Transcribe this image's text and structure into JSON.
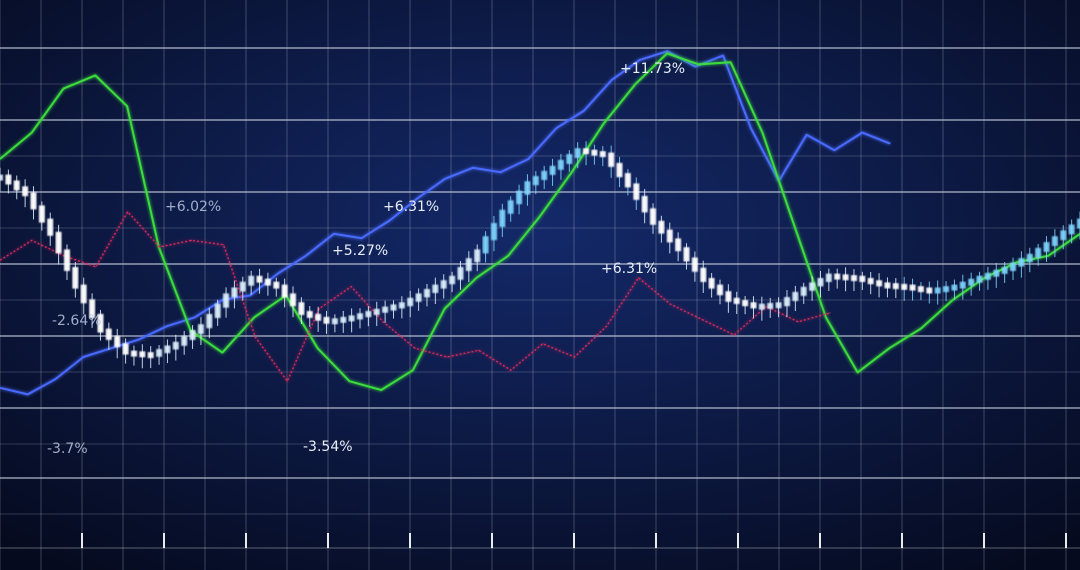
{
  "colors": {
    "background_center": "#14296a",
    "background_edge": "#050a1e",
    "grid": "#c8cfe0",
    "blue_line": "#4a6bff",
    "green_line": "#3bdc3b",
    "red_line": "#d6285a",
    "candle_body": "#dff3ff",
    "candle_body_cyan": "#7fd6ff",
    "label_text": "#e8eef8"
  },
  "annotations": [
    {
      "text": "+11.73%"
    },
    {
      "text": "+6.02%"
    },
    {
      "text": "+6.31%"
    },
    {
      "text": "+5.27%"
    },
    {
      "text": "+6.31%"
    },
    {
      "text": "-2.64%"
    },
    {
      "text": "-3.54%"
    },
    {
      "text": "-3.7%"
    }
  ],
  "chart_data": {
    "type": "line",
    "title": "",
    "xlabel": "",
    "ylabel": "",
    "grid": true,
    "legend": "none",
    "tick_marks": 13,
    "series": [
      {
        "color": "blue",
        "values": [
          -3.4,
          -3.7,
          -3.0,
          -2.0,
          -1.6,
          -1.2,
          -0.6,
          -0.2,
          0.6,
          0.8,
          1.8,
          2.6,
          3.6,
          3.4,
          4.2,
          5.2,
          6.1,
          6.6,
          6.4,
          7.0,
          8.4,
          9.2,
          10.6,
          11.5,
          11.9,
          11.2,
          11.7,
          8.4,
          6.0,
          8.1,
          7.4,
          8.2,
          7.7
        ]
      },
      {
        "color": "green",
        "values": [
          7.0,
          8.2,
          10.2,
          10.8,
          9.4,
          3.0,
          -0.8,
          -1.8,
          -0.2,
          0.8,
          -1.6,
          -3.1,
          -3.5,
          -2.6,
          0.2,
          1.6,
          2.6,
          4.4,
          6.4,
          8.6,
          10.4,
          11.8,
          11.3,
          11.4,
          8.2,
          4.0,
          -0.2,
          -2.7,
          -1.6,
          -0.7,
          0.6,
          1.6,
          2.3,
          2.6,
          3.6
        ]
      },
      {
        "color": "red",
        "values": [
          2.4,
          3.3,
          2.6,
          2.1,
          4.6,
          3.0,
          3.3,
          3.1,
          -1.1,
          -3.1,
          0.2,
          1.2,
          -0.4,
          -1.6,
          -2.0,
          -1.7,
          -2.6,
          -1.4,
          -2.0,
          -0.6,
          1.6,
          0.4,
          -0.3,
          -1.0,
          0.3,
          -0.4,
          0.0
        ]
      },
      {
        "color": "white-candles",
        "values": [
          6.2,
          5.4,
          3.6,
          1.2,
          -0.8,
          -1.8,
          -1.9,
          -1.4,
          -0.6,
          0.8,
          1.6,
          1.2,
          0.0,
          -0.4,
          -0.2,
          0.1,
          0.4,
          1.0,
          1.6,
          2.8,
          4.6,
          5.9,
          6.6,
          7.4,
          7.2,
          5.8,
          4.1,
          2.9,
          1.5,
          0.6,
          0.3,
          0.4,
          1.1,
          1.7,
          1.6,
          1.3,
          1.2,
          1.0,
          1.2,
          1.6,
          2.0,
          2.6,
          3.4,
          4.2
        ]
      }
    ]
  }
}
